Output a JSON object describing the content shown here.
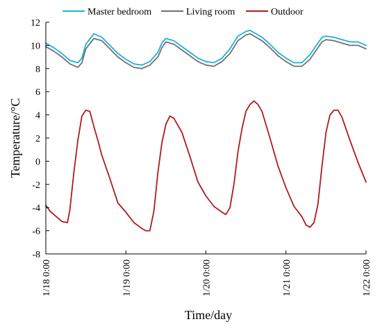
{
  "chart_data": {
    "type": "line",
    "xlabel": "Time/day",
    "ylabel": "Temperature/°C",
    "ylim": [
      -8,
      12
    ],
    "xlim": [
      0,
      4
    ],
    "yticks": [
      -8,
      -6,
      -4,
      -2,
      0,
      2,
      4,
      6,
      8,
      10,
      12
    ],
    "xticks": [
      {
        "x": 0,
        "label": "1/18 0:00"
      },
      {
        "x": 1,
        "label": "1/19 0:00"
      },
      {
        "x": 2,
        "label": "1/20 0:00"
      },
      {
        "x": 3,
        "label": "1/21 0:00"
      },
      {
        "x": 4,
        "label": "1/22 0:00"
      }
    ],
    "legend_position": "top",
    "grid": false,
    "series": [
      {
        "name": "Master bedroom",
        "color": "#1ab0e0",
        "x": [
          0,
          0.1,
          0.2,
          0.3,
          0.4,
          0.45,
          0.5,
          0.6,
          0.7,
          0.8,
          0.9,
          1.0,
          1.1,
          1.2,
          1.3,
          1.4,
          1.45,
          1.5,
          1.6,
          1.7,
          1.8,
          1.9,
          2.0,
          2.1,
          2.2,
          2.3,
          2.4,
          2.5,
          2.55,
          2.6,
          2.7,
          2.8,
          2.9,
          3.0,
          3.1,
          3.2,
          3.3,
          3.4,
          3.45,
          3.5,
          3.6,
          3.7,
          3.8,
          3.9,
          4.0
        ],
        "y": [
          10.2,
          9.8,
          9.3,
          8.7,
          8.5,
          8.9,
          10.1,
          11.0,
          10.7,
          10.0,
          9.3,
          8.8,
          8.4,
          8.3,
          8.6,
          9.4,
          10.2,
          10.6,
          10.4,
          9.9,
          9.4,
          8.9,
          8.6,
          8.5,
          8.9,
          9.7,
          10.8,
          11.2,
          11.3,
          11.1,
          10.7,
          10.1,
          9.4,
          8.9,
          8.5,
          8.5,
          9.2,
          10.2,
          10.7,
          10.8,
          10.7,
          10.5,
          10.3,
          10.3,
          10.0
        ]
      },
      {
        "name": "Living room",
        "color": "#707070",
        "x": [
          0,
          0.1,
          0.2,
          0.3,
          0.4,
          0.45,
          0.5,
          0.6,
          0.7,
          0.8,
          0.9,
          1.0,
          1.1,
          1.2,
          1.3,
          1.4,
          1.45,
          1.5,
          1.6,
          1.7,
          1.8,
          1.9,
          2.0,
          2.1,
          2.2,
          2.3,
          2.4,
          2.5,
          2.55,
          2.6,
          2.7,
          2.8,
          2.9,
          3.0,
          3.1,
          3.2,
          3.3,
          3.4,
          3.45,
          3.5,
          3.6,
          3.7,
          3.8,
          3.9,
          4.0
        ],
        "y": [
          9.9,
          9.5,
          9.0,
          8.4,
          8.1,
          8.5,
          9.7,
          10.6,
          10.4,
          9.7,
          9.0,
          8.5,
          8.1,
          8.0,
          8.3,
          9.0,
          9.8,
          10.3,
          10.1,
          9.6,
          9.1,
          8.6,
          8.3,
          8.2,
          8.6,
          9.3,
          10.4,
          10.9,
          11.0,
          10.8,
          10.4,
          9.8,
          9.1,
          8.6,
          8.2,
          8.2,
          8.8,
          9.8,
          10.3,
          10.5,
          10.4,
          10.2,
          10.0,
          10.0,
          9.7
        ]
      },
      {
        "name": "Outdoor",
        "color": "#b01a1a",
        "x": [
          0,
          0.05,
          0.1,
          0.2,
          0.27,
          0.3,
          0.35,
          0.4,
          0.45,
          0.5,
          0.55,
          0.6,
          0.65,
          0.7,
          0.8,
          0.9,
          1.0,
          1.1,
          1.2,
          1.25,
          1.3,
          1.35,
          1.4,
          1.45,
          1.5,
          1.55,
          1.6,
          1.7,
          1.8,
          1.9,
          2.0,
          2.1,
          2.2,
          2.25,
          2.3,
          2.35,
          2.4,
          2.45,
          2.5,
          2.55,
          2.6,
          2.65,
          2.7,
          2.8,
          2.9,
          3.0,
          3.1,
          3.2,
          3.25,
          3.3,
          3.35,
          3.4,
          3.45,
          3.5,
          3.55,
          3.6,
          3.65,
          3.7,
          3.8,
          3.9,
          4.0
        ],
        "y": [
          -3.8,
          -4.3,
          -4.6,
          -5.2,
          -5.3,
          -4.2,
          -1.0,
          1.8,
          3.9,
          4.4,
          4.3,
          3.0,
          1.8,
          0.5,
          -1.5,
          -3.6,
          -4.4,
          -5.3,
          -5.8,
          -6.0,
          -6.0,
          -4.3,
          -1.0,
          1.6,
          3.2,
          3.9,
          3.7,
          2.5,
          0.4,
          -1.8,
          -3.0,
          -3.9,
          -4.4,
          -4.6,
          -4.0,
          -2.0,
          0.8,
          2.8,
          4.3,
          4.9,
          5.2,
          4.9,
          4.3,
          2.0,
          -0.4,
          -2.3,
          -3.9,
          -4.8,
          -5.5,
          -5.7,
          -5.3,
          -3.7,
          -0.4,
          2.5,
          4.0,
          4.4,
          4.4,
          3.8,
          1.8,
          -0.1,
          -1.8
        ]
      }
    ]
  }
}
